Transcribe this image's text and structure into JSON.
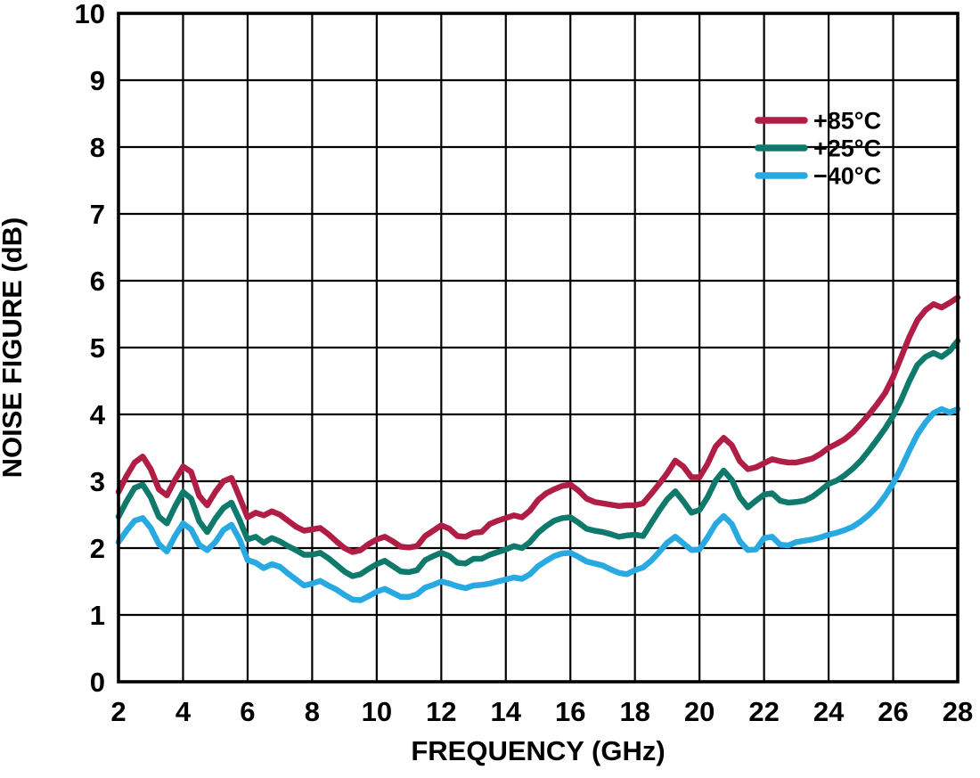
{
  "figure": {
    "background_color": "#ffffff",
    "text_color": "#000000",
    "grid_color": "#000000"
  },
  "chart_data": {
    "type": "line",
    "title": "",
    "xlabel": "FREQUENCY (GHz)",
    "ylabel": "NOISE FIGURE (dB)",
    "xlim": [
      2,
      28
    ],
    "ylim": [
      0,
      10
    ],
    "x_ticks": [
      2,
      4,
      6,
      8,
      10,
      12,
      14,
      16,
      18,
      20,
      22,
      24,
      26,
      28
    ],
    "y_ticks": [
      0,
      1,
      2,
      3,
      4,
      5,
      6,
      7,
      8,
      9,
      10
    ],
    "grid": true,
    "legend_position": "top-right-inside",
    "x_start": 2,
    "x_step": 0.25,
    "series": [
      {
        "name": "+85°C",
        "color": "#B01E46",
        "values": [
          2.84,
          3.08,
          3.28,
          3.37,
          3.18,
          2.88,
          2.79,
          3.02,
          3.22,
          3.14,
          2.78,
          2.64,
          2.84,
          3.0,
          3.05,
          2.76,
          2.46,
          2.53,
          2.49,
          2.55,
          2.5,
          2.41,
          2.32,
          2.26,
          2.28,
          2.3,
          2.21,
          2.1,
          2.0,
          1.94,
          1.97,
          2.06,
          2.13,
          2.17,
          2.1,
          2.02,
          2.01,
          2.03,
          2.18,
          2.26,
          2.34,
          2.29,
          2.18,
          2.17,
          2.23,
          2.24,
          2.36,
          2.41,
          2.45,
          2.49,
          2.46,
          2.56,
          2.72,
          2.82,
          2.88,
          2.93,
          2.95,
          2.86,
          2.74,
          2.69,
          2.67,
          2.65,
          2.63,
          2.64,
          2.64,
          2.67,
          2.81,
          2.96,
          3.12,
          3.31,
          3.22,
          3.06,
          3.06,
          3.26,
          3.52,
          3.65,
          3.54,
          3.3,
          3.18,
          3.21,
          3.27,
          3.33,
          3.3,
          3.28,
          3.28,
          3.31,
          3.34,
          3.41,
          3.5,
          3.56,
          3.63,
          3.73,
          3.86,
          4.0,
          4.15,
          4.32,
          4.56,
          4.86,
          5.16,
          5.41,
          5.56,
          5.65,
          5.6,
          5.67,
          5.75
        ]
      },
      {
        "name": "+25°C",
        "color": "#0F7A6C",
        "values": [
          2.47,
          2.7,
          2.9,
          2.95,
          2.76,
          2.47,
          2.37,
          2.62,
          2.84,
          2.74,
          2.4,
          2.24,
          2.44,
          2.6,
          2.68,
          2.42,
          2.13,
          2.17,
          2.08,
          2.15,
          2.1,
          2.03,
          1.97,
          1.9,
          1.9,
          1.93,
          1.85,
          1.75,
          1.65,
          1.58,
          1.61,
          1.69,
          1.76,
          1.81,
          1.73,
          1.65,
          1.64,
          1.67,
          1.82,
          1.88,
          1.93,
          1.88,
          1.78,
          1.77,
          1.84,
          1.84,
          1.9,
          1.94,
          1.98,
          2.03,
          2.0,
          2.09,
          2.23,
          2.33,
          2.41,
          2.45,
          2.46,
          2.38,
          2.29,
          2.26,
          2.24,
          2.21,
          2.17,
          2.19,
          2.2,
          2.18,
          2.37,
          2.56,
          2.73,
          2.85,
          2.7,
          2.53,
          2.57,
          2.76,
          3.01,
          3.16,
          3.02,
          2.76,
          2.61,
          2.71,
          2.8,
          2.82,
          2.71,
          2.68,
          2.69,
          2.71,
          2.77,
          2.86,
          2.96,
          3.01,
          3.09,
          3.19,
          3.31,
          3.46,
          3.62,
          3.79,
          3.98,
          4.22,
          4.5,
          4.74,
          4.86,
          4.92,
          4.86,
          4.95,
          5.1
        ]
      },
      {
        "name": "−40°C",
        "color": "#29A9E1",
        "values": [
          2.09,
          2.26,
          2.41,
          2.45,
          2.3,
          2.06,
          1.95,
          2.18,
          2.37,
          2.28,
          2.05,
          1.97,
          2.09,
          2.27,
          2.35,
          2.13,
          1.82,
          1.78,
          1.7,
          1.76,
          1.72,
          1.62,
          1.53,
          1.44,
          1.47,
          1.51,
          1.44,
          1.38,
          1.3,
          1.23,
          1.22,
          1.28,
          1.35,
          1.39,
          1.33,
          1.27,
          1.27,
          1.31,
          1.41,
          1.45,
          1.5,
          1.47,
          1.43,
          1.4,
          1.44,
          1.45,
          1.47,
          1.5,
          1.53,
          1.56,
          1.54,
          1.61,
          1.73,
          1.81,
          1.88,
          1.92,
          1.93,
          1.87,
          1.8,
          1.77,
          1.74,
          1.68,
          1.63,
          1.61,
          1.67,
          1.71,
          1.81,
          1.94,
          2.08,
          2.17,
          2.07,
          1.97,
          1.98,
          2.16,
          2.36,
          2.48,
          2.36,
          2.1,
          1.97,
          1.98,
          2.15,
          2.17,
          2.05,
          2.04,
          2.09,
          2.11,
          2.13,
          2.16,
          2.2,
          2.23,
          2.27,
          2.32,
          2.4,
          2.5,
          2.62,
          2.78,
          2.97,
          3.2,
          3.46,
          3.7,
          3.88,
          4.02,
          4.08,
          4.03,
          4.08
        ]
      }
    ]
  }
}
